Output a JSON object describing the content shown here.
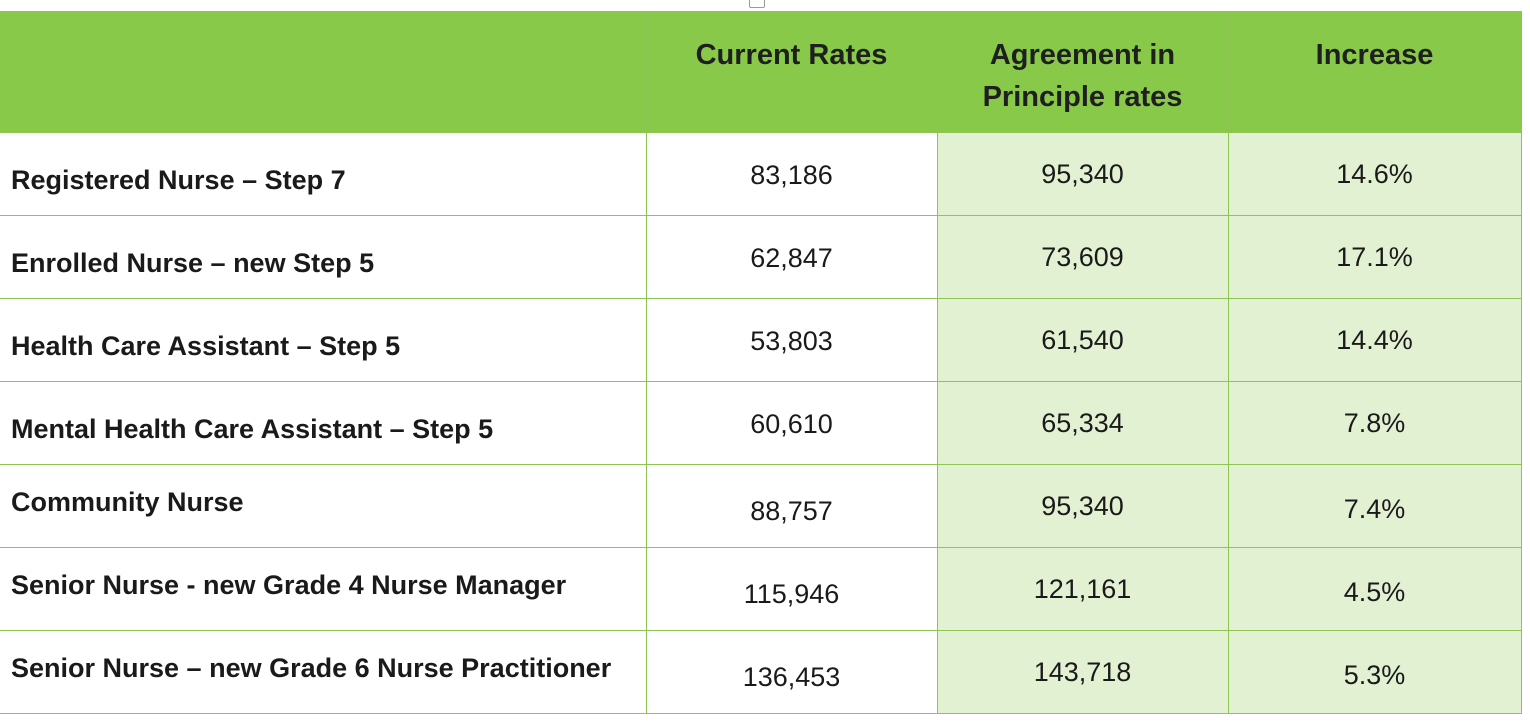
{
  "table": {
    "headers": [
      "",
      "Current Rates",
      "Agreement in Principle rates",
      "Increase"
    ],
    "header_lines": {
      "agreement": [
        "Agreement in",
        "Principle rates"
      ]
    },
    "rows": [
      {
        "role": "Registered Nurse – Step 7",
        "current": "83,186",
        "agreement": "95,340",
        "increase": "14.6%"
      },
      {
        "role": "Enrolled Nurse – new Step 5",
        "current": "62,847",
        "agreement": "73,609",
        "increase": "17.1%"
      },
      {
        "role": "Health Care Assistant – Step 5",
        "current": "53,803",
        "agreement": "61,540",
        "increase": "14.4%"
      },
      {
        "role": "Mental Health Care Assistant – Step 5",
        "current": "60,610",
        "agreement": "65,334",
        "increase": "7.8%"
      },
      {
        "role": "Community Nurse",
        "current": "88,757",
        "agreement": "95,340",
        "increase": "7.4%"
      },
      {
        "role": "Senior Nurse - new Grade 4 Nurse Manager",
        "current": "115,946",
        "agreement": "121,161",
        "increase": "4.5%"
      },
      {
        "role": "Senior Nurse – new Grade 6 Nurse Practitioner",
        "current": "136,453",
        "agreement": "143,718",
        "increase": "5.3%"
      }
    ]
  },
  "colors": {
    "header_green": "#88c949",
    "border_green": "#8dc453",
    "shade_green": "#e3f1d3"
  }
}
